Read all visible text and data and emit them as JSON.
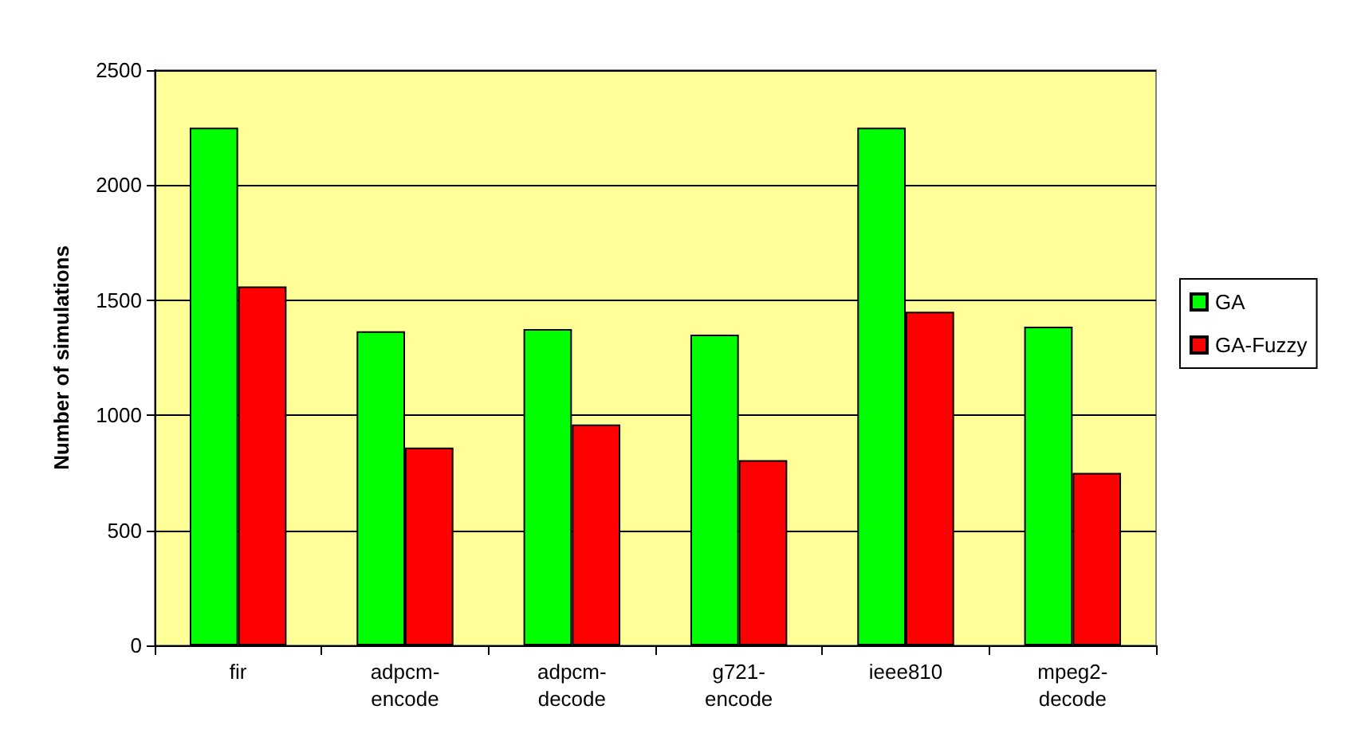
{
  "chart_data": {
    "type": "bar",
    "ylabel": "Number of simulations",
    "categories": [
      "fir",
      "adpcm-encode",
      "adpcm-decode",
      "g721-encode",
      "ieee810",
      "mpeg2-decode"
    ],
    "series": [
      {
        "name": "GA",
        "color": "#00ff00",
        "values": [
          2250,
          1365,
          1375,
          1350,
          2250,
          1385
        ]
      },
      {
        "name": "GA-Fuzzy",
        "color": "#ff0000",
        "values": [
          1560,
          860,
          960,
          805,
          1450,
          750
        ]
      }
    ],
    "ylim": [
      0,
      2500
    ],
    "yticks": [
      0,
      500,
      1000,
      1500,
      2000,
      2500
    ],
    "grid": "y",
    "legend": "right"
  }
}
